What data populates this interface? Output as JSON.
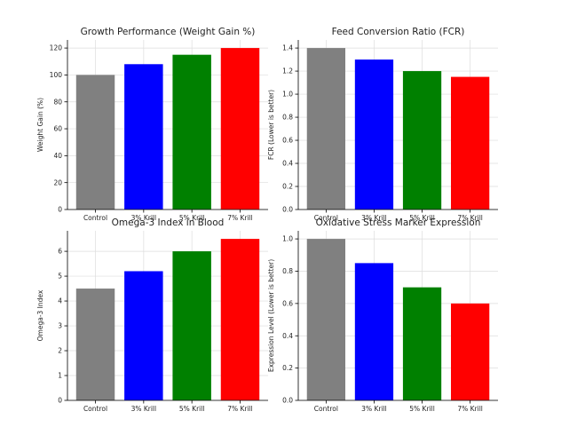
{
  "chart_data": [
    {
      "type": "bar",
      "title": "Growth Performance (Weight Gain %)",
      "xlabel": "",
      "ylabel": "Weight Gain (%)",
      "categories": [
        "Control",
        "3% Krill",
        "5% Krill",
        "7% Krill"
      ],
      "values": [
        100,
        108,
        115,
        120
      ],
      "colors": [
        "#808080",
        "#0000ff",
        "#008000",
        "#ff0000"
      ],
      "ylim": [
        0,
        126
      ],
      "yticks": [
        0,
        20,
        40,
        60,
        80,
        100,
        120
      ],
      "ytick_labels": [
        "0",
        "20",
        "40",
        "60",
        "80",
        "100",
        "120"
      ],
      "grid": true
    },
    {
      "type": "bar",
      "title": "Feed Conversion Ratio (FCR)",
      "xlabel": "",
      "ylabel": "FCR (Lower is better)",
      "categories": [
        "Control",
        "3% Krill",
        "5% Krill",
        "7% Krill"
      ],
      "values": [
        1.4,
        1.3,
        1.2,
        1.15
      ],
      "colors": [
        "#808080",
        "#0000ff",
        "#008000",
        "#ff0000"
      ],
      "ylim": [
        0,
        1.47
      ],
      "yticks": [
        0,
        0.2,
        0.4,
        0.6,
        0.8,
        1.0,
        1.2,
        1.4
      ],
      "ytick_labels": [
        "0.0",
        "0.2",
        "0.4",
        "0.6",
        "0.8",
        "1.0",
        "1.2",
        "1.4"
      ],
      "grid": true
    },
    {
      "type": "bar",
      "title": "Omega-3 Index in Blood",
      "xlabel": "",
      "ylabel": "Omega-3 Index",
      "categories": [
        "Control",
        "3% Krill",
        "5% Krill",
        "7% Krill"
      ],
      "values": [
        4.5,
        5.2,
        6.0,
        6.5
      ],
      "colors": [
        "#808080",
        "#0000ff",
        "#008000",
        "#ff0000"
      ],
      "ylim": [
        0,
        6.825
      ],
      "yticks": [
        0,
        1,
        2,
        3,
        4,
        5,
        6
      ],
      "ytick_labels": [
        "0",
        "1",
        "2",
        "3",
        "4",
        "5",
        "6"
      ],
      "grid": true
    },
    {
      "type": "bar",
      "title": "Oxidative Stress Marker Expression",
      "xlabel": "",
      "ylabel": "Expression Level (Lower is better)",
      "categories": [
        "Control",
        "3% Krill",
        "5% Krill",
        "7% Krill"
      ],
      "values": [
        1.0,
        0.85,
        0.7,
        0.6
      ],
      "colors": [
        "#808080",
        "#0000ff",
        "#008000",
        "#ff0000"
      ],
      "ylim": [
        0,
        1.05
      ],
      "yticks": [
        0,
        0.2,
        0.4,
        0.6,
        0.8,
        1.0
      ],
      "ytick_labels": [
        "0.0",
        "0.2",
        "0.4",
        "0.6",
        "0.8",
        "1.0"
      ],
      "grid": true
    }
  ]
}
